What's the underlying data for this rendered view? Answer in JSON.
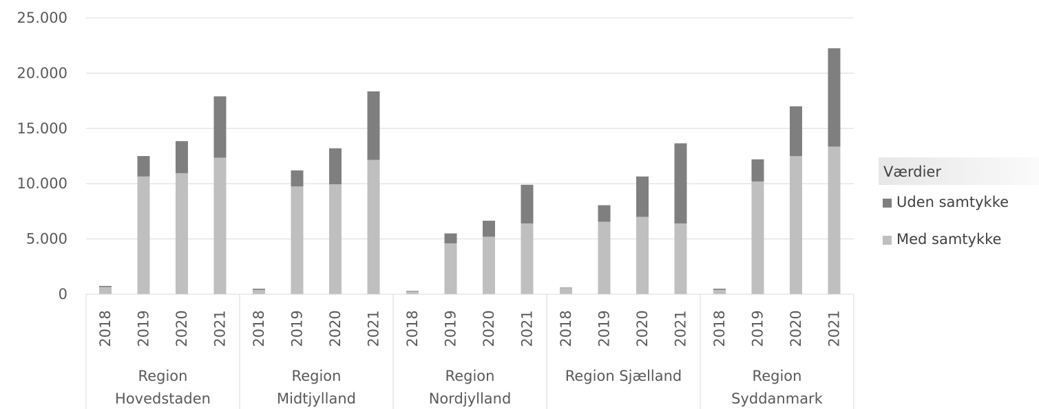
{
  "chart_data": {
    "type": "bar",
    "stacked": true,
    "groups": [
      "Region Hovedstaden",
      "Region Midtjylland",
      "Region Nordjylland",
      "Region Sjælland",
      "Region Syddanmark"
    ],
    "group_labels": [
      [
        "Region",
        "Hovedstaden"
      ],
      [
        "Region",
        "Midtjylland"
      ],
      [
        "Region",
        "Nordjylland"
      ],
      [
        "Region Sjælland"
      ],
      [
        "Region",
        "Syddanmark"
      ]
    ],
    "years": [
      "2018",
      "2019",
      "2020",
      "2021"
    ],
    "series": [
      {
        "name": "Med samtykke",
        "color": "#bfbfbf",
        "values": [
          [
            650,
            10650,
            10950,
            12350
          ],
          [
            400,
            9750,
            9950,
            12150
          ],
          [
            250,
            4600,
            5200,
            6400
          ],
          [
            550,
            6550,
            7000,
            6400
          ],
          [
            400,
            10200,
            12500,
            13350
          ]
        ]
      },
      {
        "name": "Uden samtykke",
        "color": "#7f7f7f",
        "values": [
          [
            100,
            1850,
            2900,
            5550
          ],
          [
            100,
            1450,
            3250,
            6200
          ],
          [
            50,
            900,
            1450,
            3500
          ],
          [
            50,
            1500,
            3650,
            7250
          ],
          [
            100,
            2000,
            4500,
            8900
          ]
        ]
      }
    ],
    "ylim": [
      0,
      25000
    ],
    "yticks": [
      0,
      5000,
      10000,
      15000,
      20000,
      25000
    ],
    "ytick_labels": [
      "0",
      "5.000",
      "10.000",
      "15.000",
      "20.000",
      "25.000"
    ],
    "grid": true,
    "legend": {
      "title": "Værdier",
      "position": "right",
      "entries": [
        "Uden samtykke",
        "Med samtykke"
      ]
    }
  }
}
